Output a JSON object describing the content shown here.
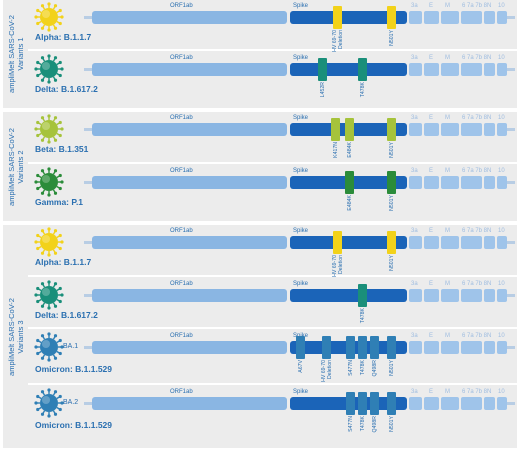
{
  "colors": {
    "label": "#2a6fb0",
    "orf": "#8ab6e3",
    "spike": "#1b64b8",
    "accessory": "#9fc4ea",
    "alpha": "#f2d21a",
    "delta": "#1a8f7a",
    "beta": "#a6c33b",
    "gamma": "#2b8c3a",
    "omicron": "#2f7fb5"
  },
  "gene_labels": {
    "orf1ab": "ORF1ab",
    "spike": "Spike",
    "g3a": "3a",
    "gE": "E",
    "gM": "M",
    "g67": "6 7a 7b 8",
    "gN": "N",
    "g10": "10"
  },
  "panels": [
    {
      "title": "ampliMelt SARS-CoV-2",
      "subtitle": "Variants 1"
    },
    {
      "title": "ampliMelt SARS-CoV-2",
      "subtitle": "Variants 2"
    },
    {
      "title": "ampliMelt SARS-CoV-2",
      "subtitle": "Variants 3"
    }
  ],
  "rows": [
    {
      "name": "Alpha: B.1.1.7",
      "icon": "alpha-virus-icon",
      "mutations": [
        {
          "label": "HV 69-70\nDeletion",
          "color": "alpha"
        },
        {
          "label": "N501Y",
          "color": "alpha"
        }
      ]
    },
    {
      "name": "Delta: B.1.617.2",
      "icon": "delta-virus-icon",
      "mutations": [
        {
          "label": "L452R",
          "color": "delta"
        },
        {
          "label": "T478K",
          "color": "delta"
        }
      ]
    },
    {
      "name": "Beta: B.1.351",
      "icon": "beta-virus-icon",
      "mutations": [
        {
          "label": "K417N",
          "color": "beta"
        },
        {
          "label": "E484K",
          "color": "beta"
        },
        {
          "label": "N501Y",
          "color": "beta"
        }
      ]
    },
    {
      "name": "Gamma: P.1",
      "icon": "gamma-virus-icon",
      "mutations": [
        {
          "label": "E484K",
          "color": "gamma"
        },
        {
          "label": "N501Y",
          "color": "gamma"
        }
      ]
    },
    {
      "name": "Alpha: B.1.1.7",
      "icon": "alpha-virus-icon",
      "mutations": [
        {
          "label": "HV 69-70\nDeletion",
          "color": "alpha"
        },
        {
          "label": "N501Y",
          "color": "alpha"
        }
      ]
    },
    {
      "name": "Delta: B.1.617.2",
      "icon": "delta-virus-icon",
      "mutations": [
        {
          "label": "T478K",
          "color": "delta"
        }
      ]
    },
    {
      "name": "Omicron: B.1.1.529",
      "sublineage": "BA.1",
      "icon": "omicron-virus-icon",
      "mutations": [
        {
          "label": "A67V",
          "color": "omicron"
        },
        {
          "label": "HV 69-70\nDeletion",
          "color": "omicron"
        },
        {
          "label": "S477N",
          "color": "omicron"
        },
        {
          "label": "T478K",
          "color": "omicron"
        },
        {
          "label": "Q498R",
          "color": "omicron"
        },
        {
          "label": "N501Y",
          "color": "omicron"
        }
      ]
    },
    {
      "name": "Omicron: B.1.1.529",
      "sublineage": "BA.2",
      "icon": "omicron-virus-icon",
      "mutations": [
        {
          "label": "S477N",
          "color": "omicron"
        },
        {
          "label": "T478K",
          "color": "omicron"
        },
        {
          "label": "Q498R",
          "color": "omicron"
        },
        {
          "label": "N501Y",
          "color": "omicron"
        }
      ]
    }
  ]
}
